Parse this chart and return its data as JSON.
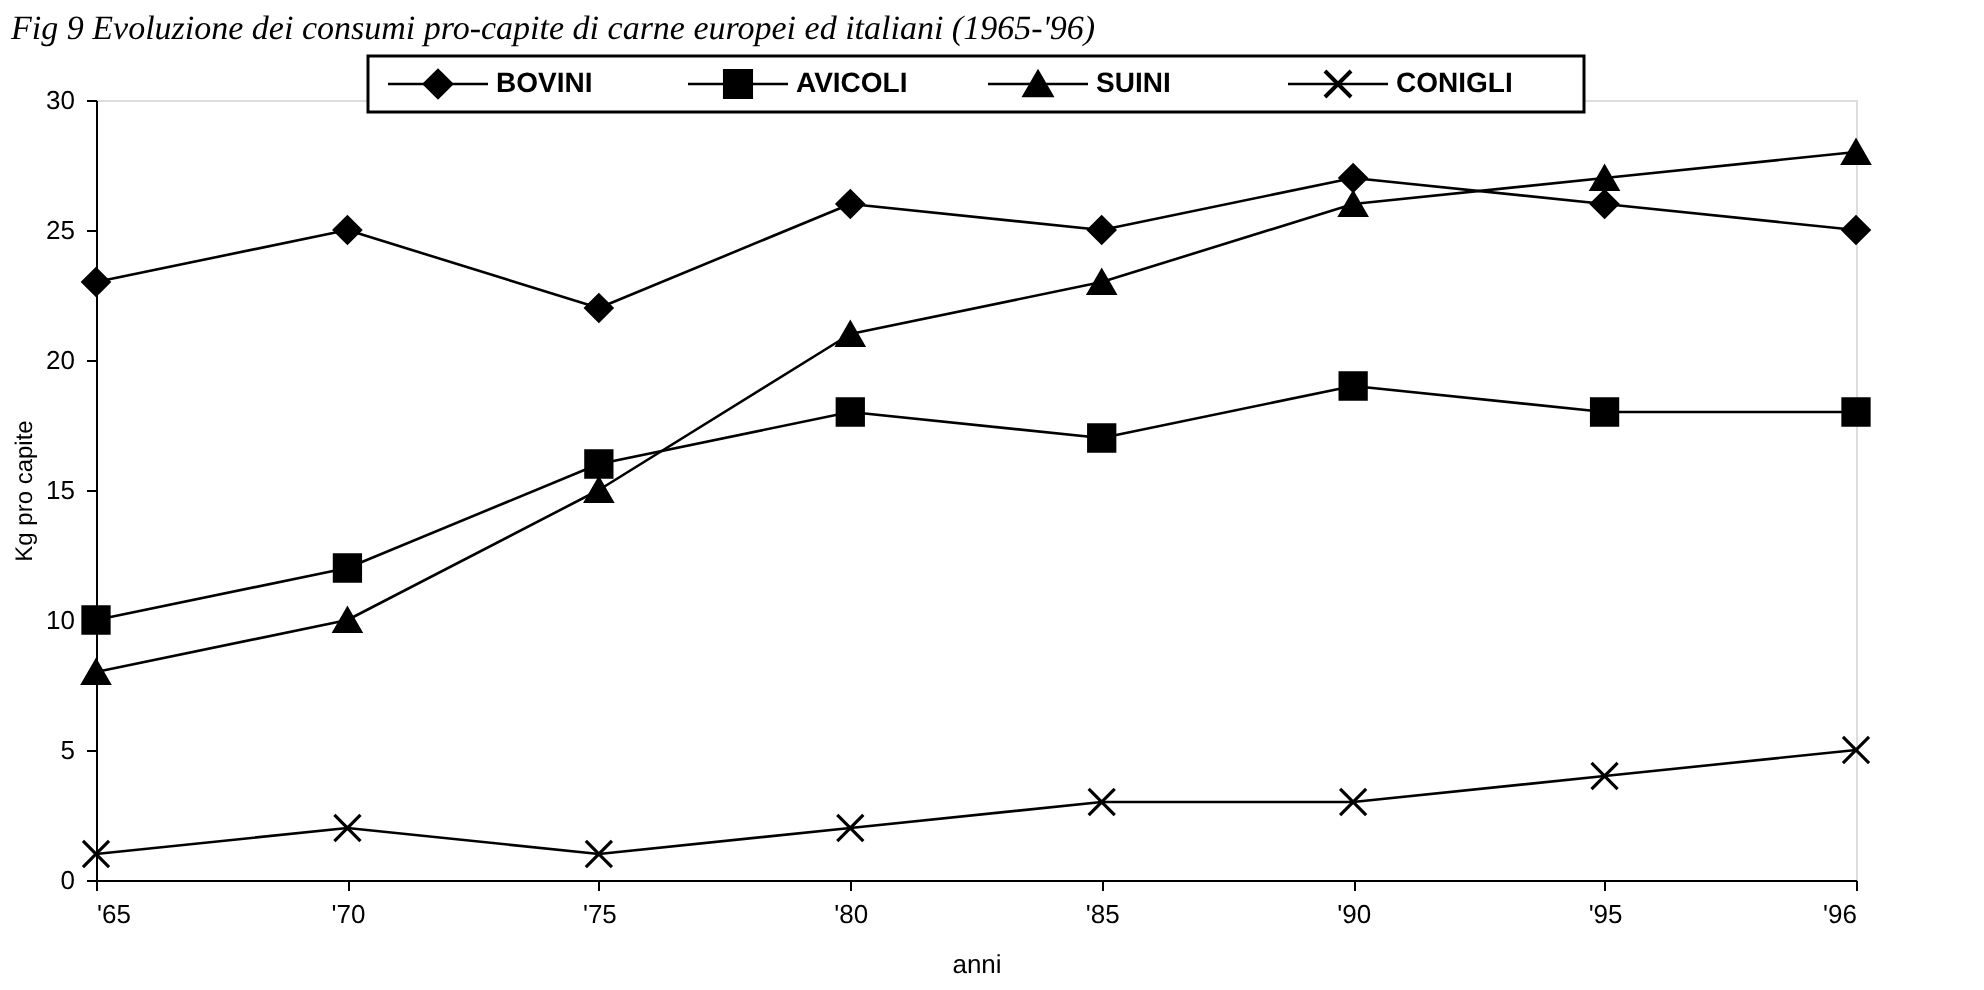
{
  "chart_data": {
    "type": "line",
    "title": "Fig 9 Evoluzione dei consumi pro-capite di carne europei ed italiani (1965-'96)",
    "xlabel": "anni",
    "ylabel": "Kg pro capite",
    "categories": [
      "'65",
      "'70",
      "'75",
      "'80",
      "'85",
      "'90",
      "'95",
      "'96"
    ],
    "series": [
      {
        "name": "BOVINI",
        "color": "#000000",
        "marker": "diamond",
        "values": [
          23,
          25,
          22,
          26,
          25,
          27,
          26,
          25
        ]
      },
      {
        "name": "AVICOLI",
        "color": "#000000",
        "marker": "square",
        "values": [
          10,
          12,
          16,
          18,
          17,
          19,
          18,
          18
        ]
      },
      {
        "name": "SUINI",
        "color": "#000000",
        "marker": "triangle",
        "values": [
          8,
          10,
          15,
          21,
          23,
          26,
          27,
          28
        ]
      },
      {
        "name": "CONIGLI",
        "color": "#000000",
        "marker": "cross",
        "values": [
          1,
          2,
          1,
          2,
          3,
          3,
          4,
          5
        ]
      }
    ],
    "ylim": [
      0,
      30
    ],
    "yticks": [
      0,
      5,
      10,
      15,
      20,
      25,
      30
    ],
    "grid": false,
    "legend": "top",
    "line_style": "solid"
  }
}
